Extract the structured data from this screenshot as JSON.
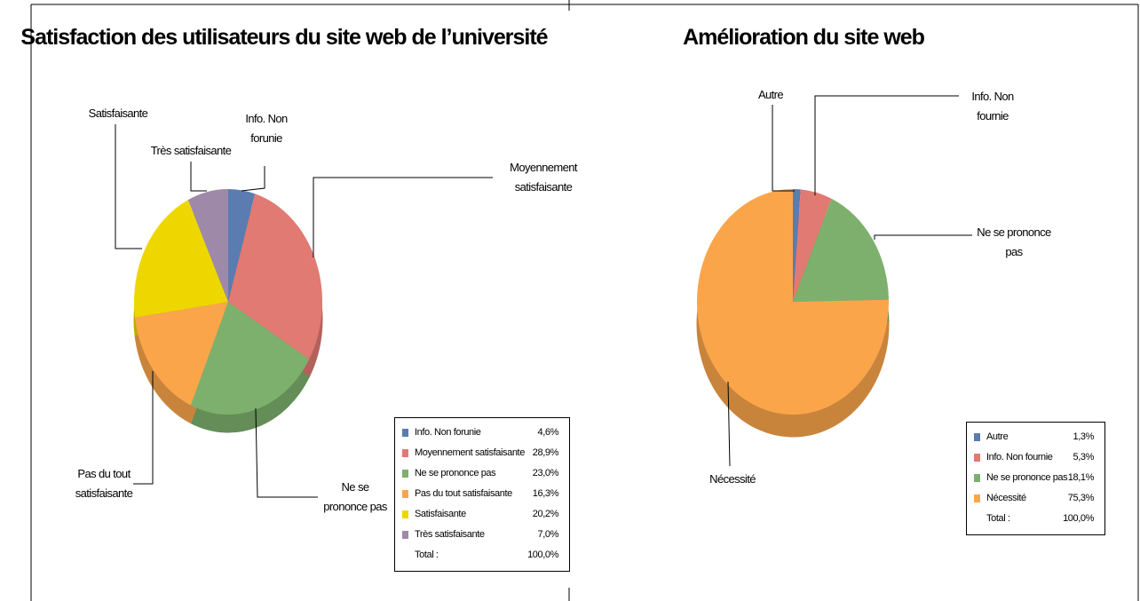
{
  "chart_data": [
    {
      "type": "pie",
      "title": "Satisfaction des utilisateurs du site web de l’université",
      "categories": [
        "Info. Non forunie",
        "Moyennement satisfaisante",
        "Ne se prononce pas",
        "Pas du tout satisfaisante",
        "Satisfaisante",
        "Très satisfaisante"
      ],
      "values": [
        4.6,
        28.9,
        23.0,
        16.3,
        20.2,
        7.0
      ],
      "value_labels": [
        "4,6%",
        "28,9%",
        "23,0%",
        "16,3%",
        "20,2%",
        "7,0%"
      ],
      "colors": [
        "#5b7cb0",
        "#e07a72",
        "#7db06d",
        "#fba54b",
        "#eed700",
        "#9e8aa8"
      ],
      "total": {
        "label": "Total :",
        "value": 100,
        "value_label": "100,0%"
      }
    },
    {
      "type": "pie",
      "title": "Amélioration du site web",
      "categories": [
        "Autre",
        "Info. Non fournie",
        "Ne se prononce pas",
        "Nécessité"
      ],
      "values": [
        1.3,
        5.3,
        18.1,
        75.3
      ],
      "value_labels": [
        "1,3%",
        "5,3%",
        "18,1%",
        "75,3%"
      ],
      "colors": [
        "#5b7cb0",
        "#e07a72",
        "#7db06d",
        "#fba54b"
      ],
      "total": {
        "label": "Total :",
        "value": 100,
        "value_label": "100,0%"
      }
    }
  ]
}
